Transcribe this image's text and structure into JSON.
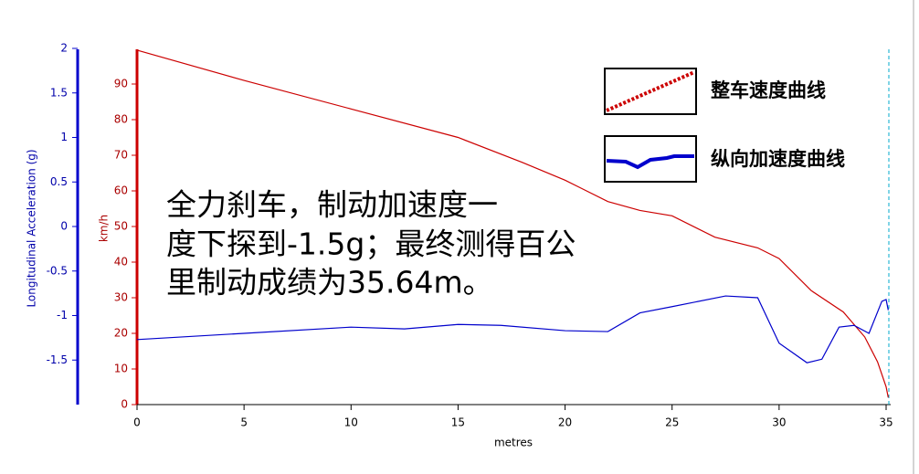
{
  "chart_data": {
    "type": "line",
    "x_label": "metres",
    "y_label": "Longitudinal Acceleration (g)",
    "y2_label": "km/h",
    "annotation": [
      "全力刹车，制动加速度一",
      "度下探到-1.5g；最终测得百公",
      "里制动成绩为35.64m。"
    ],
    "xlim": [
      0,
      35.2
    ],
    "xticks": [
      0,
      5,
      10,
      15,
      20,
      25,
      30,
      35
    ],
    "ylim": [
      -2,
      2
    ],
    "yticks": [
      2,
      1.5,
      1,
      0.5,
      0,
      -0.5,
      -1,
      -1.5
    ],
    "y2lim": [
      0,
      100
    ],
    "y2ticks": [
      0,
      10,
      20,
      30,
      40,
      50,
      60,
      70,
      80,
      90
    ],
    "series": [
      {
        "name": "整车速度曲线",
        "color": "#cc0000",
        "axis": "y2",
        "x": [
          0,
          5,
          10,
          15,
          18,
          20,
          22,
          23.5,
          25,
          27,
          29,
          30,
          31.5,
          33,
          34,
          34.6,
          35,
          35.1
        ],
        "values": [
          99.5,
          91,
          83,
          75,
          68,
          63,
          57,
          54.5,
          53,
          47,
          44,
          41,
          32,
          26,
          19,
          12,
          5,
          2
        ]
      },
      {
        "name": "纵向加速度曲线",
        "color": "#0000cc",
        "axis": "y",
        "x": [
          0,
          5,
          10,
          12.5,
          15,
          17,
          20,
          22,
          23.5,
          25,
          27.5,
          29,
          30,
          31.3,
          32,
          32.8,
          33.5,
          34.2,
          34.8,
          35,
          35.1
        ],
        "values": [
          -1.27,
          -1.2,
          -1.13,
          -1.15,
          -1.1,
          -1.11,
          -1.17,
          -1.18,
          -0.97,
          -0.9,
          -0.78,
          -0.8,
          -1.31,
          -1.53,
          -1.49,
          -1.13,
          -1.11,
          -1.2,
          -0.84,
          -0.82,
          -0.94
        ]
      }
    ]
  }
}
